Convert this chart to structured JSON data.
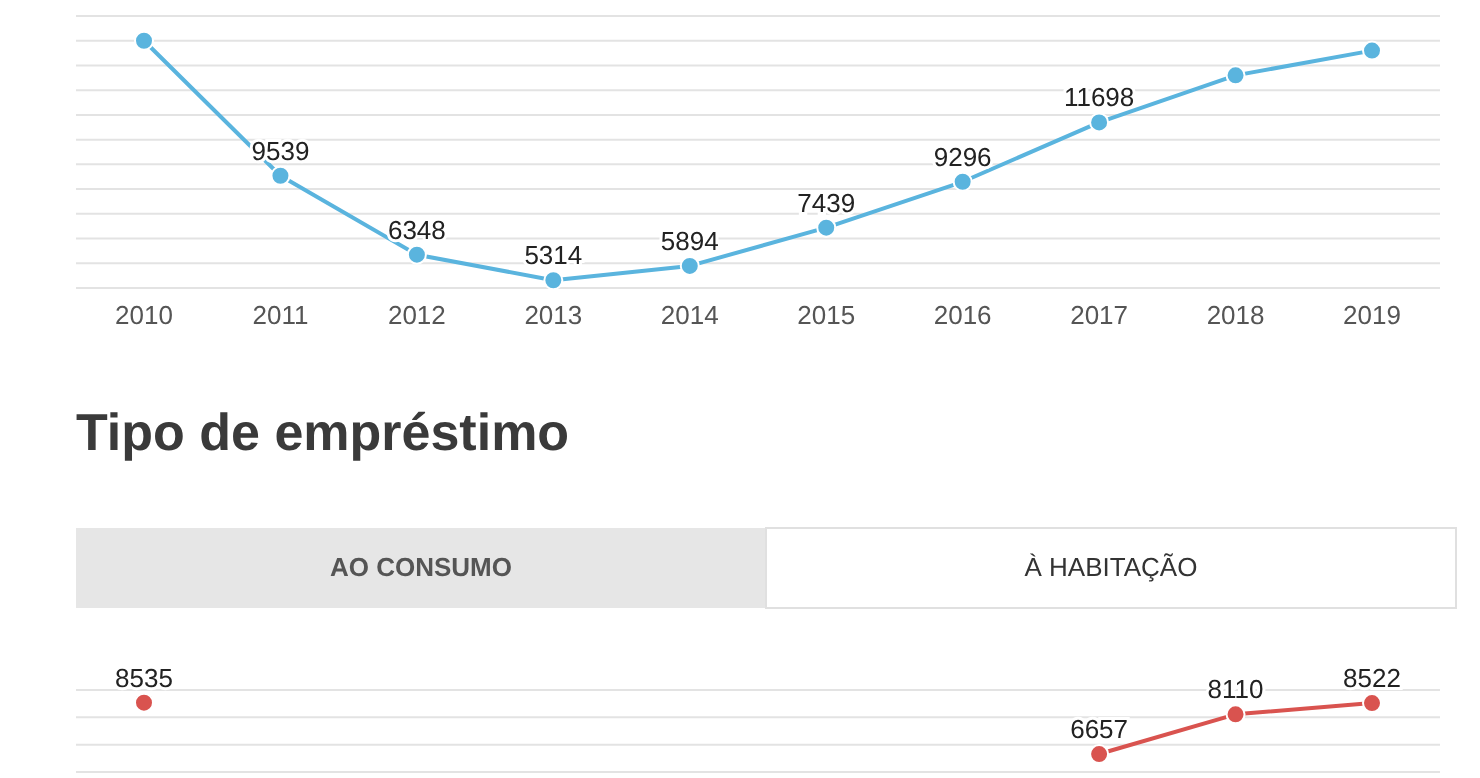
{
  "chart_data": [
    {
      "type": "line",
      "categories": [
        "2010",
        "2011",
        "2012",
        "2013",
        "2014",
        "2015",
        "2016",
        "2017",
        "2018",
        "2019"
      ],
      "values": [
        15000,
        9539,
        6348,
        5314,
        5894,
        7439,
        9296,
        11698,
        13600,
        14600
      ],
      "value_labels": [
        null,
        "9539",
        "6348",
        "5314",
        "5894",
        "7439",
        "9296",
        "11698",
        null,
        null
      ],
      "color": "#5ab4de",
      "marker": "circle",
      "ylim": [
        5000,
        16000
      ],
      "yticks": [
        {
          "value": 5000,
          "label": null
        },
        {
          "value": 6000,
          "label": null
        },
        {
          "value": 7000,
          "label": null
        },
        {
          "value": 8000,
          "label": null
        },
        {
          "value": 9000,
          "label": null
        },
        {
          "value": 10000,
          "label": null
        },
        {
          "value": 11000,
          "label": null
        },
        {
          "value": 12000,
          "label": null
        },
        {
          "value": 13000,
          "label": null
        },
        {
          "value": 14000,
          "label": null
        },
        {
          "value": 15000,
          "label": null
        },
        {
          "value": 16000,
          "label": null
        }
      ],
      "grid": "y",
      "tick_labels": "x"
    },
    {
      "type": "line",
      "title": "Tipo de empréstimo",
      "annotations": [
        "AO CONSUMO",
        "À HABITAÇÃO"
      ],
      "categories": [
        null,
        null,
        null,
        null,
        null,
        null,
        null,
        null,
        null,
        null
      ],
      "values": [
        8535,
        null,
        null,
        null,
        null,
        null,
        null,
        6657,
        8110,
        8522
      ],
      "data_labels": true,
      "color": "#d9534f",
      "marker": "circle",
      "ylim": [
        6000,
        9000
      ],
      "yticks": [
        {
          "value": 6000,
          "label": null
        },
        {
          "value": 7000,
          "label": null
        },
        {
          "value": 8000,
          "label": null
        },
        {
          "value": 9000,
          "label": null
        }
      ],
      "grid": "y",
      "tick_labels": false
    }
  ]
}
